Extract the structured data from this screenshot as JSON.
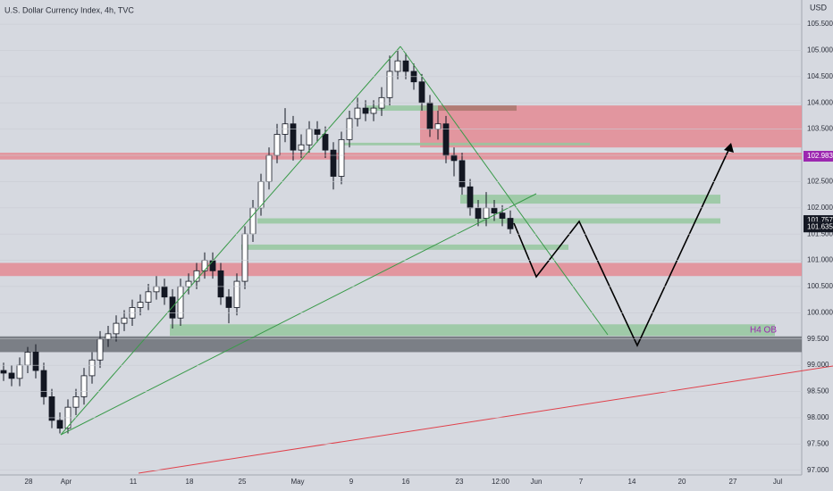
{
  "chart_data": {
    "type": "candlestick",
    "title": "U.S. Dollar Currency Index, 4h, TVC",
    "y_unit": "USD",
    "x_labels": [
      "28",
      "Apr",
      "11",
      "18",
      "25",
      "May",
      "9",
      "16",
      "23",
      "12:00",
      "Jun",
      "7",
      "14",
      "20",
      "27",
      "Jul"
    ],
    "open": [
      98.9,
      98.85,
      98.75,
      99.0,
      99.25,
      98.9,
      98.4,
      97.95,
      97.8,
      98.2,
      98.4,
      98.8,
      99.1,
      99.5,
      99.6,
      99.8,
      99.9,
      100.1,
      100.2,
      100.4,
      100.5,
      100.3,
      99.9,
      100.5,
      100.6,
      100.8,
      101.0,
      100.8,
      100.3,
      100.1,
      100.6,
      101.5,
      102.0,
      102.5,
      103.0,
      103.4,
      103.6,
      103.1,
      103.2,
      103.5,
      103.4,
      103.1,
      102.6,
      103.3,
      103.7,
      103.9,
      103.8,
      103.9,
      104.1,
      104.6,
      104.8,
      104.6,
      104.4,
      104.0,
      103.5,
      103.6,
      103.0,
      102.9,
      102.4,
      102.0,
      101.8,
      102.0,
      101.9,
      101.8
    ],
    "high": [
      99.05,
      99.0,
      99.15,
      99.35,
      99.4,
      99.05,
      98.55,
      98.1,
      98.35,
      98.55,
      98.95,
      99.25,
      99.65,
      99.75,
      99.95,
      100.05,
      100.25,
      100.35,
      100.55,
      100.7,
      100.65,
      100.45,
      100.65,
      100.75,
      100.95,
      101.15,
      101.15,
      100.95,
      100.45,
      100.75,
      101.65,
      102.15,
      102.65,
      103.15,
      103.6,
      103.9,
      103.75,
      103.4,
      103.65,
      103.65,
      103.55,
      103.25,
      103.45,
      103.85,
      104.1,
      104.05,
      104.05,
      104.3,
      104.9,
      105.0,
      104.95,
      104.75,
      104.55,
      104.15,
      103.85,
      103.75,
      103.15,
      103.05,
      102.55,
      102.15,
      102.3,
      102.15,
      102.05,
      101.95
    ],
    "low": [
      98.7,
      98.6,
      98.6,
      98.85,
      98.75,
      98.25,
      97.8,
      97.7,
      97.7,
      98.05,
      98.25,
      98.65,
      98.95,
      99.35,
      99.45,
      99.65,
      99.75,
      99.95,
      100.05,
      100.25,
      100.15,
      99.7,
      99.75,
      100.35,
      100.45,
      100.65,
      100.65,
      100.15,
      99.8,
      99.95,
      100.45,
      101.35,
      101.85,
      102.35,
      102.85,
      103.25,
      102.9,
      102.95,
      103.05,
      103.25,
      102.95,
      102.35,
      102.45,
      103.15,
      103.55,
      103.65,
      103.65,
      103.75,
      103.95,
      104.45,
      104.45,
      104.25,
      103.85,
      103.35,
      103.3,
      102.85,
      102.6,
      102.25,
      101.85,
      101.65,
      101.65,
      101.75,
      101.65,
      101.5
    ],
    "close": [
      98.85,
      98.75,
      99.0,
      99.25,
      98.9,
      98.4,
      97.95,
      97.8,
      98.2,
      98.4,
      98.8,
      99.1,
      99.5,
      99.6,
      99.8,
      99.9,
      100.1,
      100.2,
      100.4,
      100.5,
      100.3,
      99.9,
      100.5,
      100.6,
      100.8,
      101.0,
      100.8,
      100.3,
      100.1,
      100.6,
      101.5,
      102.0,
      102.5,
      103.0,
      103.4,
      103.6,
      103.1,
      103.2,
      103.5,
      103.4,
      103.1,
      102.6,
      103.3,
      103.7,
      103.9,
      103.8,
      103.9,
      104.1,
      104.6,
      104.8,
      104.6,
      104.4,
      104.0,
      103.5,
      103.6,
      103.0,
      102.9,
      102.4,
      102.0,
      101.8,
      102.0,
      101.9,
      101.8,
      101.6
    ],
    "up_color": "#ffffff",
    "down_color": "#131722",
    "ylim": [
      96.91,
      105.96
    ],
    "yticks": [
      {
        "value": 97,
        "label": "97.000"
      },
      {
        "value": 97.5,
        "label": "97.500"
      },
      {
        "value": 98,
        "label": "98.000"
      },
      {
        "value": 98.5,
        "label": "98.500"
      },
      {
        "value": 99,
        "label": "99.000"
      },
      {
        "value": 99.5,
        "label": "99.500"
      },
      {
        "value": 100,
        "label": "100.000"
      },
      {
        "value": 100.5,
        "label": "100.500"
      },
      {
        "value": 101,
        "label": "101.000"
      },
      {
        "value": 101.5,
        "label": "101.500"
      },
      {
        "value": 102,
        "label": "102.000"
      },
      {
        "value": 102.5,
        "label": "102.500"
      },
      {
        "value": 103,
        "label": "103.000"
      },
      {
        "value": 103.5,
        "label": "103.500"
      },
      {
        "value": 104,
        "label": "104.000"
      },
      {
        "value": 104.5,
        "label": "104.500"
      },
      {
        "value": 105,
        "label": "105.000"
      },
      {
        "value": 105.5,
        "label": "105.500"
      }
    ],
    "zones": [
      {
        "top": 103.95,
        "bottom": 103.15,
        "color": "#e48a93"
      },
      {
        "top": 103.05,
        "bottom": 102.92,
        "color": "#e48a93"
      },
      {
        "top": 100.95,
        "bottom": 100.7,
        "color": "#e48a93"
      },
      {
        "top": 99.55,
        "bottom": 99.25,
        "color": "#6b6e76"
      },
      {
        "top": 99.78,
        "bottom": 99.56,
        "color": "#95c79d",
        "label": "H4 OB"
      },
      {
        "top": 102.25,
        "bottom": 102.08,
        "color": "#95c79d"
      },
      {
        "top": 101.8,
        "bottom": 101.7,
        "color": "#95c79d"
      },
      {
        "top": 101.3,
        "bottom": 101.2,
        "color": "#95c79d"
      },
      {
        "top": 103.95,
        "bottom": 103.85,
        "color": "#95c79d"
      },
      {
        "top": 103.95,
        "bottom": 103.85,
        "color": "#a8786c"
      },
      {
        "top": 103.24,
        "bottom": 103.19,
        "color": "#95c79d"
      }
    ],
    "price_labels": [
      {
        "value": 102.983,
        "color": "#9c27b0"
      },
      {
        "value": 101.757,
        "color": "#131722"
      },
      {
        "value": 101.635,
        "color": "#131722"
      }
    ]
  }
}
